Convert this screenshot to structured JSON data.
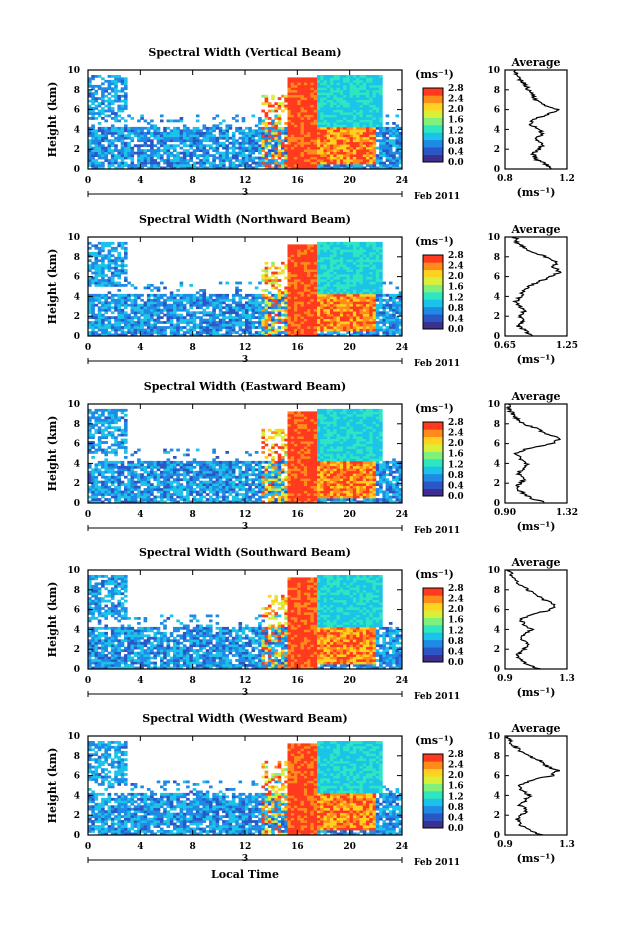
{
  "figure": {
    "xlabel": "Local Time",
    "date_label": "Feb 2011",
    "day_label": "3",
    "colorbar_unit": "(ms⁻¹)",
    "avg_title": "Average",
    "avg_xlabel": "(ms⁻¹)",
    "colormap": [
      "#3b2f8f",
      "#2a56c6",
      "#1e8ae6",
      "#1cc3e8",
      "#2ee6c0",
      "#7ff07a",
      "#d8f03a",
      "#ffd21f",
      "#ff8c1a",
      "#ff3a1f"
    ]
  },
  "chart_data": [
    {
      "type": "heatmap",
      "title": "Spectral Width (Vertical Beam)",
      "ylabel": "Height (km)",
      "xlim": [
        0,
        24
      ],
      "ylim": [
        0,
        10
      ],
      "xticks": [
        0,
        4,
        8,
        12,
        16,
        20,
        24
      ],
      "yticks": [
        0,
        2,
        4,
        6,
        8,
        10
      ],
      "colorbar_ticks": [
        "0.0",
        "0.4",
        "0.8",
        "1.2",
        "1.6",
        "2.0",
        "2.4",
        "2.8"
      ],
      "avg_xlim": [
        0.8,
        1.2
      ],
      "avg_xticks": [
        "0.8",
        "1.2"
      ],
      "avg_profile": {
        "height": [
          0,
          0.5,
          1,
          1.5,
          2,
          2.5,
          3,
          3.5,
          4,
          4.5,
          5,
          5.5,
          6,
          6.5,
          7,
          7.5,
          8,
          8.5,
          9,
          9.5,
          10
        ],
        "width": [
          1.1,
          1.06,
          1.0,
          0.98,
          1.02,
          1.05,
          1.0,
          1.04,
          1.02,
          0.96,
          0.98,
          1.08,
          1.15,
          1.05,
          1.0,
          0.98,
          0.95,
          0.93,
          0.9,
          0.88,
          0.86
        ]
      }
    },
    {
      "type": "heatmap",
      "title": "Spectral Width (Northward Beam)",
      "ylabel": "Height (km)",
      "xlim": [
        0,
        24
      ],
      "ylim": [
        0,
        10
      ],
      "xticks": [
        0,
        4,
        8,
        12,
        16,
        20,
        24
      ],
      "yticks": [
        0,
        2,
        4,
        6,
        8,
        10
      ],
      "colorbar_ticks": [
        "0.0",
        "0.4",
        "0.8",
        "1.2",
        "1.6",
        "2.0",
        "2.4",
        "2.8"
      ],
      "avg_xlim": [
        0.65,
        1.25
      ],
      "avg_xticks": [
        "0.65",
        "1.25"
      ],
      "avg_profile": {
        "height": [
          0,
          0.5,
          1,
          1.5,
          2,
          2.5,
          3,
          3.5,
          4,
          4.5,
          5,
          5.5,
          6,
          6.5,
          7,
          7.5,
          8,
          8.5,
          9,
          9.5,
          10
        ],
        "width": [
          0.92,
          0.85,
          0.78,
          0.82,
          0.8,
          0.84,
          0.79,
          0.76,
          0.8,
          0.83,
          0.88,
          0.98,
          1.1,
          1.18,
          1.12,
          1.15,
          1.05,
          0.92,
          0.82,
          0.76,
          0.75
        ]
      }
    },
    {
      "type": "heatmap",
      "title": "Spectral Width (Eastward Beam)",
      "ylabel": "Height (km)",
      "xlim": [
        0,
        24
      ],
      "ylim": [
        0,
        10
      ],
      "xticks": [
        0,
        4,
        8,
        12,
        16,
        20,
        24
      ],
      "yticks": [
        0,
        2,
        4,
        6,
        8,
        10
      ],
      "colorbar_ticks": [
        "0.0",
        "0.4",
        "0.8",
        "1.2",
        "1.6",
        "2.0",
        "2.4",
        "2.8"
      ],
      "avg_xlim": [
        0.9,
        1.32
      ],
      "avg_xticks": [
        "0.90",
        "1.32"
      ],
      "avg_profile": {
        "height": [
          0,
          0.5,
          1,
          1.5,
          2,
          2.5,
          3,
          3.5,
          4,
          4.5,
          5,
          5.5,
          6,
          6.5,
          7,
          7.5,
          8,
          8.5,
          9,
          9.5,
          10
        ],
        "width": [
          1.18,
          1.08,
          1.02,
          0.98,
          1.0,
          1.04,
          0.99,
          1.02,
          1.05,
          1.0,
          0.98,
          1.05,
          1.22,
          1.28,
          1.18,
          1.12,
          1.02,
          0.98,
          0.95,
          0.93,
          0.92
        ]
      }
    },
    {
      "type": "heatmap",
      "title": "Spectral Width (Southward Beam)",
      "ylabel": "Height (km)",
      "xlim": [
        0,
        24
      ],
      "ylim": [
        0,
        10
      ],
      "xticks": [
        0,
        4,
        8,
        12,
        16,
        20,
        24
      ],
      "yticks": [
        0,
        2,
        4,
        6,
        8,
        10
      ],
      "colorbar_ticks": [
        "0.0",
        "0.4",
        "0.8",
        "1.2",
        "1.6",
        "2.0",
        "2.4",
        "2.8"
      ],
      "avg_xlim": [
        0.9,
        1.3
      ],
      "avg_xticks": [
        "0.9",
        "1.3"
      ],
      "avg_profile": {
        "height": [
          0,
          0.5,
          1,
          1.5,
          2,
          2.5,
          3,
          3.5,
          4,
          4.5,
          5,
          5.5,
          6,
          6.5,
          7,
          7.5,
          8,
          8.5,
          9,
          9.5,
          10
        ],
        "width": [
          1.12,
          1.04,
          1.0,
          0.98,
          1.02,
          1.06,
          1.0,
          1.03,
          1.08,
          1.02,
          1.0,
          1.06,
          1.2,
          1.22,
          1.15,
          1.1,
          1.05,
          1.0,
          0.96,
          0.94,
          0.93
        ]
      }
    },
    {
      "type": "heatmap",
      "title": "Spectral Width (Westward Beam)",
      "ylabel": "Height (km)",
      "xlim": [
        0,
        24
      ],
      "ylim": [
        0,
        10
      ],
      "xticks": [
        0,
        4,
        8,
        12,
        16,
        20,
        24
      ],
      "yticks": [
        0,
        2,
        4,
        6,
        8,
        10
      ],
      "colorbar_ticks": [
        "0.0",
        "0.4",
        "0.8",
        "1.2",
        "1.6",
        "2.0",
        "2.4",
        "2.8"
      ],
      "avg_xlim": [
        0.9,
        1.3
      ],
      "avg_xticks": [
        "0.9",
        "1.3"
      ],
      "avg_profile": {
        "height": [
          0,
          0.5,
          1,
          1.5,
          2,
          2.5,
          3,
          3.5,
          4,
          4.5,
          5,
          5.5,
          6,
          6.5,
          7,
          7.5,
          8,
          8.5,
          9,
          9.5,
          10
        ],
        "width": [
          1.14,
          1.06,
          1.0,
          0.98,
          1.0,
          1.05,
          0.99,
          1.03,
          1.06,
          1.01,
          0.99,
          1.06,
          1.2,
          1.24,
          1.16,
          1.12,
          1.05,
          1.0,
          0.96,
          0.93,
          0.92
        ]
      }
    }
  ]
}
